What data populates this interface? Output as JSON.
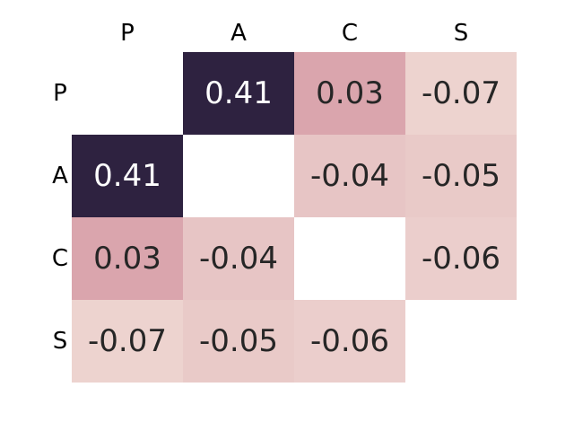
{
  "chart_data": {
    "type": "heatmap",
    "title": "",
    "xlabel": "",
    "ylabel": "",
    "x_labels": [
      "P",
      "A",
      "C",
      "S"
    ],
    "y_labels": [
      "P",
      "A",
      "C",
      "S"
    ],
    "x_tick_position": "top",
    "grid": false,
    "colorbar": false,
    "masked_diagonal": true,
    "values": [
      [
        null,
        0.41,
        0.03,
        -0.07
      ],
      [
        0.41,
        null,
        -0.04,
        -0.05
      ],
      [
        0.03,
        -0.04,
        null,
        -0.06
      ],
      [
        -0.07,
        -0.05,
        -0.06,
        null
      ]
    ],
    "cell_text": [
      [
        "",
        "0.41",
        "0.03",
        "-0.07"
      ],
      [
        "0.41",
        "",
        "-0.04",
        "-0.05"
      ],
      [
        "0.03",
        "-0.04",
        "",
        "-0.06"
      ],
      [
        "-0.07",
        "-0.05",
        "-0.06",
        ""
      ]
    ],
    "colors": {
      "high": "#2e2240",
      "low": "#edd3cf",
      "mid": "#daa5ad",
      "text_dark": "#262626",
      "text_light": "#ffffff",
      "masked": "#ffffff"
    }
  }
}
